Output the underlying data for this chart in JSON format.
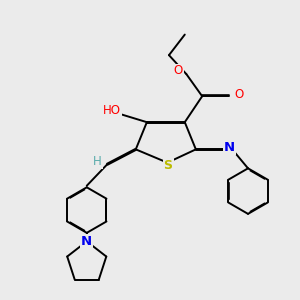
{
  "bg_color": "#ebebeb",
  "atom_colors": {
    "C": "#000000",
    "H": "#5aacac",
    "O": "#ff0000",
    "N": "#0000ee",
    "S": "#bbbb00"
  },
  "bond_color": "#000000",
  "bond_width": 1.4,
  "dbo": 0.018
}
